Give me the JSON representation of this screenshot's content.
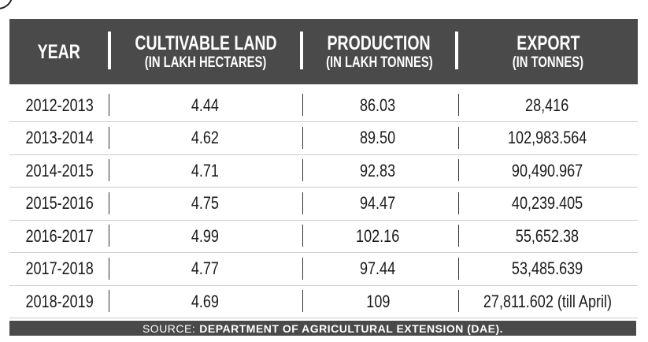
{
  "table": {
    "headers": [
      {
        "title": "YEAR",
        "sub": ""
      },
      {
        "title": "CULTIVABLE LAND",
        "sub": "(IN LAKH HECTARES)"
      },
      {
        "title": "PRODUCTION",
        "sub": "(IN LAKH TONNES)"
      },
      {
        "title": "EXPORT",
        "sub": "(IN TONNES)"
      }
    ],
    "rows": [
      [
        "2012-2013",
        "4.44",
        "86.03",
        "28,416"
      ],
      [
        "2013-2014",
        "4.62",
        "89.50",
        "102,983.564"
      ],
      [
        "2014-2015",
        "4.71",
        "92.83",
        "90,490.967"
      ],
      [
        "2015-2016",
        "4.75",
        "94.47",
        "40,239.405"
      ],
      [
        "2016-2017",
        "4.99",
        "102.16",
        "55,652.38"
      ],
      [
        "2017-2018",
        "4.77",
        "97.44",
        "53,485.639"
      ],
      [
        "2018-2019",
        "4.69",
        "109",
        "27,811.602 (till April)"
      ]
    ]
  },
  "source": {
    "label": "SOURCE:",
    "value": "DEPARTMENT OF AGRICULTURAL EXTENSION (DAE)."
  }
}
